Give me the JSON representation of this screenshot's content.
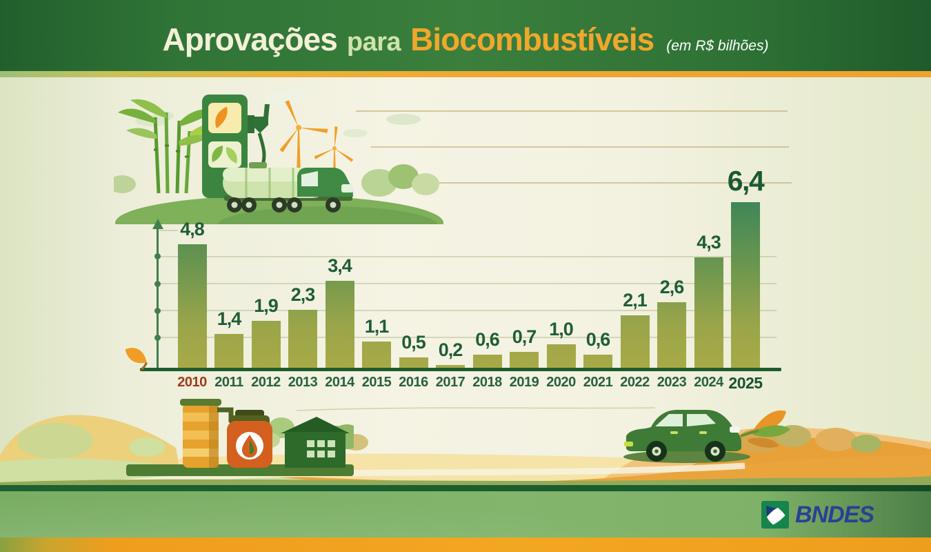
{
  "header": {
    "title_main": "Aprovações",
    "title_connector": "para",
    "title_emphasis": "Biocombustíveis",
    "title_unit": "(em R$ bilhões)"
  },
  "chart_data": {
    "type": "bar",
    "title": "Aprovações para Biocombustíveis",
    "unit": "em R$ bilhões",
    "categories": [
      "2010",
      "2011",
      "2012",
      "2013",
      "2014",
      "2015",
      "2016",
      "2017",
      "2018",
      "2019",
      "2020",
      "2021",
      "2022",
      "2023",
      "2024",
      "2025"
    ],
    "values": [
      4.8,
      1.4,
      1.9,
      2.3,
      3.4,
      1.1,
      0.5,
      0.2,
      0.6,
      0.7,
      1.0,
      0.6,
      2.1,
      2.6,
      4.3,
      6.4
    ],
    "value_labels_displayed": [
      "4,8",
      "1,4",
      "1,9",
      "2,3",
      "3,4",
      "1,1",
      "0,5",
      "0,2",
      "0,6",
      "0,7",
      "1,0",
      "0,6",
      "2,1",
      "2,6",
      "4,3",
      "6,4"
    ],
    "xlabel": "",
    "ylabel": "",
    "ylim": [
      0,
      6.7
    ],
    "grid": true,
    "legend": "none",
    "highlighted_category": "2010",
    "emphasized_category": "2025"
  },
  "footer": {
    "logo_text": "BNDES"
  },
  "colors": {
    "header_green": "#2f7336",
    "title_cream": "#f3f0d8",
    "title_light_green": "#cfe3ab",
    "title_orange": "#f0a72c",
    "bar_top_green": "#3f8758",
    "bar_bottom_olive": "#a9aa46",
    "baseline_green": "#1e5c2e",
    "value_label_green": "#1e5d37",
    "year_green": "#27613d",
    "year_2010_red": "#9e3a1c",
    "footer_band_green": "#7fb168",
    "bottom_strip_orange": "#f2a722",
    "logo_green": "#15854b",
    "logo_blue": "#2b3f94"
  },
  "illustrations": {
    "top_scene": [
      "sugarcane",
      "fuel-pump",
      "orange-leaf-screen",
      "fuel-nozzle",
      "tanker-truck",
      "wind-turbines",
      "clouds",
      "green-hill"
    ],
    "bottom_left_scene": [
      "storage-silo",
      "biofuel-tank-with-drop-emblem",
      "barn",
      "trees"
    ],
    "bottom_right_scene": [
      "eco-car",
      "exhaust-leaves",
      "orange-hills"
    ],
    "axis_decor": [
      "orange-leaf"
    ]
  }
}
